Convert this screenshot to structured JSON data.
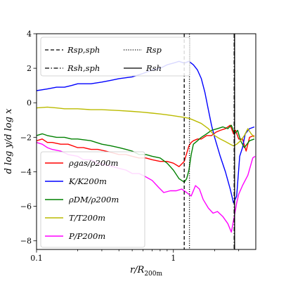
{
  "chart_data": {
    "type": "line",
    "xscale": "log",
    "xlim": [
      0.1,
      4.0
    ],
    "ylim": [
      -8.5,
      4.0
    ],
    "xlabel": "r/R₂₀₀ₘ",
    "ylabel": "d log y/d log x",
    "x_ticks": [
      {
        "value": 0.1,
        "label": "0.1"
      },
      {
        "value": 1,
        "label": "1"
      }
    ],
    "y_ticks": [
      {
        "value": 4,
        "label": "4"
      },
      {
        "value": 2,
        "label": "2"
      },
      {
        "value": 0,
        "label": "0"
      },
      {
        "value": -2,
        "label": "−2"
      },
      {
        "value": -4,
        "label": "−4"
      },
      {
        "value": -6,
        "label": "−6"
      },
      {
        "value": -8,
        "label": "−8"
      }
    ],
    "grid": false,
    "vlines": [
      {
        "name": "R_sp,sph",
        "label": "Rsp,sph",
        "x": 1.2,
        "style": "dashed"
      },
      {
        "name": "R_sp",
        "label": "Rsp",
        "x": 1.31,
        "style": "dotted"
      },
      {
        "name": "R_sh,sph",
        "label": "Rsh,sph",
        "x": 2.78,
        "style": "dashdot"
      },
      {
        "name": "R_sh",
        "label": "Rsh",
        "x": 2.8,
        "style": "solid"
      }
    ],
    "legend_top_position": "top",
    "legend_bottom_position": "lower-left",
    "series": [
      {
        "name": "ρgas/ρ200m",
        "color": "#ff0000",
        "x": [
          0.1,
          0.11,
          0.12,
          0.13,
          0.15,
          0.17,
          0.2,
          0.22,
          0.25,
          0.28,
          0.32,
          0.36,
          0.4,
          0.45,
          0.5,
          0.56,
          0.63,
          0.7,
          0.8,
          0.9,
          1.0,
          1.1,
          1.2,
          1.3,
          1.35,
          1.4,
          1.5,
          1.6,
          1.75,
          1.9,
          2.05,
          2.2,
          2.4,
          2.6,
          2.75,
          2.85,
          3.0,
          3.2,
          3.4,
          3.6,
          3.9
        ],
        "y": [
          -2.2,
          -2.1,
          -2.3,
          -2.3,
          -2.4,
          -2.4,
          -2.6,
          -2.6,
          -2.7,
          -2.7,
          -2.8,
          -2.9,
          -3.0,
          -3.0,
          -3.1,
          -3.2,
          -3.2,
          -3.3,
          -3.4,
          -3.4,
          -3.5,
          -3.7,
          -3.4,
          -2.5,
          -2.3,
          -2.2,
          -2.1,
          -2.1,
          -1.9,
          -1.9,
          -1.7,
          -1.6,
          -1.5,
          -1.3,
          -1.8,
          -1.6,
          -2.1,
          -2.1,
          -2.8,
          -2.0,
          -1.9
        ]
      },
      {
        "name": "K/K200m",
        "color": "#0000ff",
        "x": [
          0.1,
          0.12,
          0.14,
          0.16,
          0.18,
          0.2,
          0.25,
          0.3,
          0.35,
          0.4,
          0.5,
          0.6,
          0.7,
          0.8,
          0.9,
          1.0,
          1.1,
          1.2,
          1.3,
          1.4,
          1.5,
          1.6,
          1.7,
          1.8,
          1.9,
          2.0,
          2.2,
          2.4,
          2.6,
          2.75,
          2.9,
          3.05,
          3.2,
          3.35,
          3.6,
          3.9
        ],
        "y": [
          0.7,
          0.8,
          0.9,
          0.9,
          1.0,
          1.1,
          1.1,
          1.2,
          1.3,
          1.4,
          1.5,
          1.7,
          1.9,
          2.0,
          2.2,
          2.3,
          2.4,
          2.3,
          2.4,
          2.2,
          1.9,
          1.4,
          0.6,
          -0.4,
          -1.3,
          -2.0,
          -3.1,
          -4.0,
          -5.0,
          -5.8,
          -5.4,
          -3.1,
          -2.6,
          -1.8,
          -1.5,
          -1.4
        ]
      },
      {
        "name": "ρDM/ρ200m",
        "color": "#008000",
        "x": [
          0.1,
          0.11,
          0.12,
          0.14,
          0.16,
          0.18,
          0.2,
          0.25,
          0.3,
          0.35,
          0.4,
          0.45,
          0.5,
          0.56,
          0.63,
          0.7,
          0.8,
          0.9,
          1.0,
          1.1,
          1.2,
          1.25,
          1.3,
          1.35,
          1.4,
          1.5,
          1.6,
          1.75,
          1.9,
          2.1,
          2.3,
          2.5,
          2.65,
          2.8,
          2.95,
          3.1,
          3.3,
          3.6,
          3.9
        ],
        "y": [
          -1.9,
          -1.8,
          -1.9,
          -2.0,
          -2.0,
          -2.1,
          -2.1,
          -2.2,
          -2.4,
          -2.5,
          -2.6,
          -2.7,
          -2.8,
          -3.0,
          -3.0,
          -3.1,
          -3.2,
          -3.5,
          -3.9,
          -4.4,
          -4.6,
          -4.4,
          -3.9,
          -3.0,
          -2.4,
          -2.2,
          -2.0,
          -1.8,
          -1.6,
          -1.5,
          -1.4,
          -1.5,
          -1.3,
          -1.8,
          -1.6,
          -2.2,
          -2.6,
          -2.2,
          -2.1
        ]
      },
      {
        "name": "T/T200m",
        "color": "#bbbb00",
        "x": [
          0.1,
          0.12,
          0.14,
          0.16,
          0.2,
          0.25,
          0.3,
          0.4,
          0.5,
          0.6,
          0.7,
          0.8,
          0.9,
          1.0,
          1.1,
          1.2,
          1.3,
          1.4,
          1.5,
          1.6,
          1.7,
          1.8,
          1.9,
          2.0,
          2.2,
          2.4,
          2.6,
          2.75,
          2.9,
          3.1,
          3.3,
          3.5,
          3.7,
          3.9
        ],
        "y": [
          -0.3,
          -0.25,
          -0.3,
          -0.35,
          -0.35,
          -0.4,
          -0.4,
          -0.45,
          -0.5,
          -0.55,
          -0.6,
          -0.65,
          -0.7,
          -0.75,
          -0.8,
          -0.85,
          -0.9,
          -1.0,
          -1.1,
          -1.2,
          -1.35,
          -1.5,
          -1.7,
          -1.9,
          -2.1,
          -2.25,
          -2.4,
          -2.5,
          -2.4,
          -2.2,
          -1.9,
          -1.5,
          -1.8,
          -2.0
        ]
      },
      {
        "name": "P/P200m",
        "color": "#ff00ff",
        "x": [
          0.1,
          0.11,
          0.12,
          0.13,
          0.15,
          0.17,
          0.2,
          0.22,
          0.25,
          0.28,
          0.32,
          0.36,
          0.4,
          0.45,
          0.5,
          0.56,
          0.63,
          0.7,
          0.78,
          0.85,
          0.95,
          1.05,
          1.15,
          1.25,
          1.35,
          1.45,
          1.55,
          1.65,
          1.8,
          1.95,
          2.1,
          2.3,
          2.5,
          2.65,
          2.8,
          2.9,
          3.0,
          3.2,
          3.5,
          3.8,
          3.95
        ],
        "y": [
          -2.3,
          -2.4,
          -2.6,
          -2.7,
          -2.8,
          -3.0,
          -3.1,
          -3.3,
          -3.3,
          -3.5,
          -3.6,
          -3.7,
          -3.8,
          -3.9,
          -4.1,
          -4.1,
          -4.3,
          -4.5,
          -4.9,
          -5.2,
          -5.1,
          -5.1,
          -5.0,
          -5.2,
          -5.4,
          -4.8,
          -5.0,
          -5.6,
          -6.1,
          -6.4,
          -6.3,
          -6.6,
          -7.0,
          -7.5,
          -6.5,
          -5.8,
          -5.3,
          -4.8,
          -4.2,
          -3.2,
          -3.1
        ]
      }
    ]
  }
}
